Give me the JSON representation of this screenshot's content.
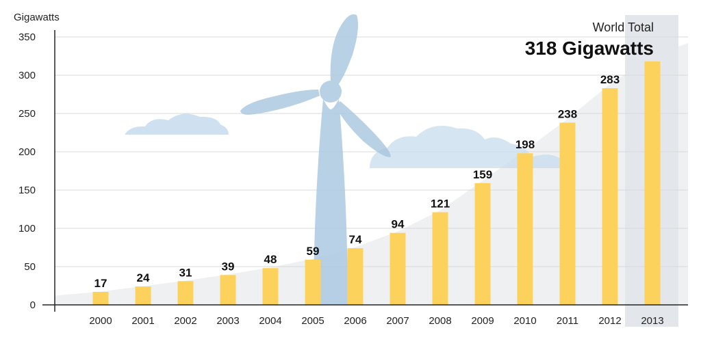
{
  "chart_data": {
    "type": "bar",
    "ylabel": "Gigawatts",
    "categories": [
      "2000",
      "2001",
      "2002",
      "2003",
      "2004",
      "2005",
      "2006",
      "2007",
      "2008",
      "2009",
      "2010",
      "2011",
      "2012",
      "2013"
    ],
    "values": [
      17,
      24,
      31,
      39,
      48,
      59,
      74,
      94,
      121,
      159,
      198,
      238,
      283,
      318
    ],
    "data_labels": [
      "17",
      "24",
      "31",
      "39",
      "48",
      "59",
      "74",
      "94",
      "121",
      "159",
      "198",
      "238",
      "283",
      ""
    ],
    "yticks": [
      0,
      50,
      100,
      150,
      200,
      250,
      300,
      350
    ],
    "ylim": [
      0,
      350
    ],
    "grid": true,
    "highlight": {
      "category": "2013",
      "subtitle": "World Total",
      "headline": "318 Gigawatts"
    },
    "colors": {
      "bar": "#fdd25c",
      "grid": "#d9d9d9",
      "axis": "#222222",
      "highlight_band": "#e3e6ea",
      "area": "#eef0f2",
      "turbine": "#a9c7e0",
      "cloud": "#c7dced"
    },
    "decorations": [
      "wind-turbine",
      "cloud",
      "cloud"
    ]
  }
}
